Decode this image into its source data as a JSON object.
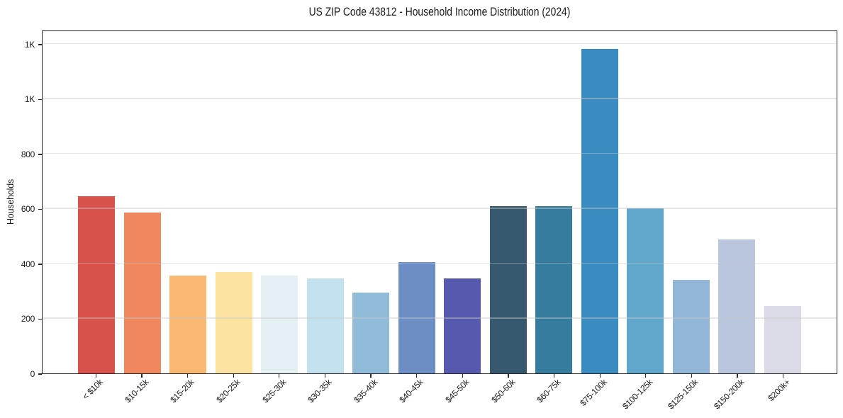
{
  "figure": {
    "background": "#ffffff",
    "axis_color": "#262626",
    "text_color": "#1a1a1a",
    "grid_color": "#c8c8c8"
  },
  "chart_data": {
    "type": "bar",
    "title": "US ZIP Code 43812 - Household Income Distribution (2024)",
    "xlabel": "",
    "ylabel": "Households",
    "categories": [
      "< $10k",
      "$10-15k",
      "$15-20k",
      "$20-25k",
      "$25-30k",
      "$30-35k",
      "$35-40k",
      "$40-45k",
      "$45-50k",
      "$50-60k",
      "$60-75k",
      "$75-100k",
      "$100-125k",
      "$125-150k",
      "$150-200k",
      "$200k+"
    ],
    "values": [
      648,
      588,
      357,
      371,
      358,
      348,
      295,
      406,
      348,
      611,
      612,
      1188,
      604,
      341,
      489,
      247
    ],
    "bar_colors": [
      "#d8524b",
      "#f1875f",
      "#fab873",
      "#fde3a2",
      "#e4f0f4",
      "#c3e1ee",
      "#90bcda",
      "#6c8ec4",
      "#5659ad",
      "#36596f",
      "#357c9e",
      "#3a8cc0",
      "#60a7cb",
      "#92b6d8",
      "#b9c6de",
      "#dadbe7"
    ],
    "ylim": [
      0,
      1252
    ],
    "yticks": {
      "values": [
        0,
        200,
        400,
        600,
        800,
        1000,
        1200
      ],
      "labels": [
        "0",
        "200",
        "400",
        "600",
        "800",
        "1K",
        "1K"
      ]
    },
    "x_tick_rotation": 45,
    "bar_width_ratio": 0.8,
    "grid": "horizontal",
    "legend": "none"
  }
}
